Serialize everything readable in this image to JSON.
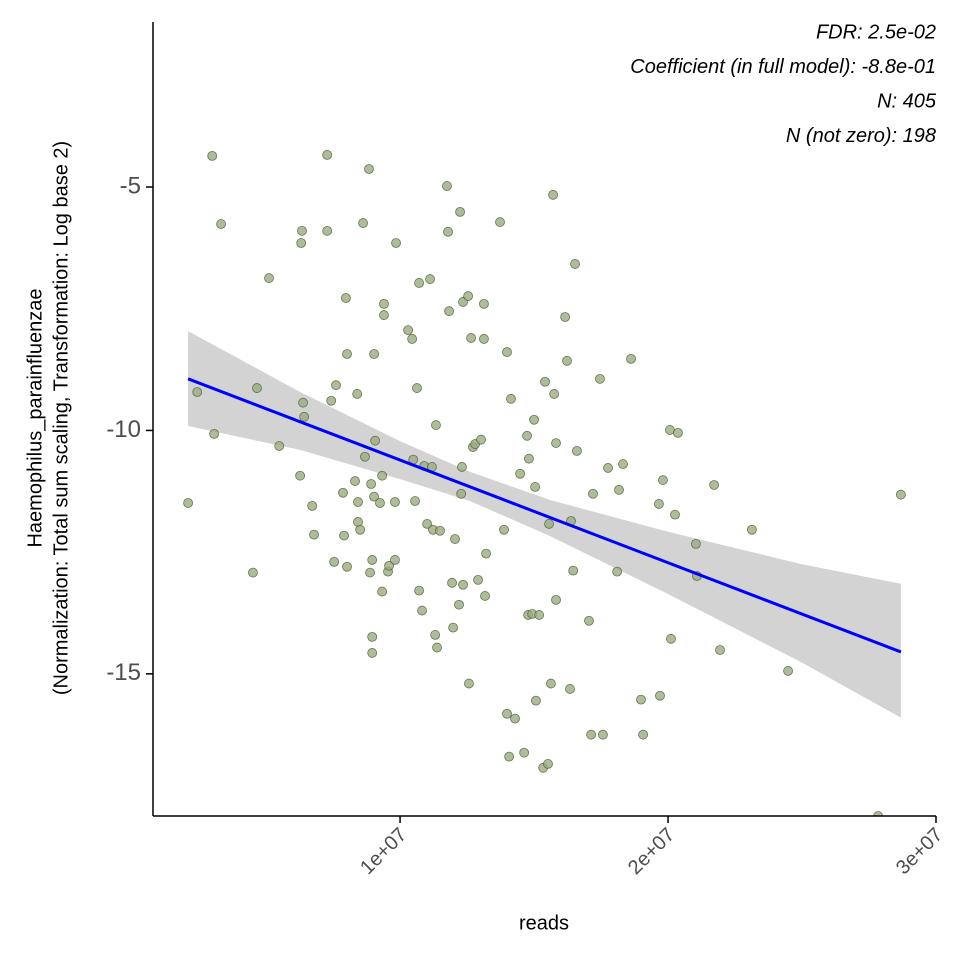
{
  "chart_data": {
    "type": "scatter",
    "x_label": "reads",
    "y_label": [
      "Haemophilus_parainfluenzae",
      "(Normalization: Total sum scaling, Transformation: Log base 2)"
    ],
    "annotations": [
      "FDR: 2.5e-02",
      "Coefficient (in full model): -8.8e-01",
      "N: 405",
      "N (not zero): 198"
    ],
    "xlim": [
      780000,
      30000000
    ],
    "ylim": [
      -17.92,
      -1.61
    ],
    "xticks": [
      {
        "value": 10000000,
        "label": "1e+07"
      },
      {
        "value": 20000000,
        "label": "2e+07"
      },
      {
        "value": 30000000,
        "label": "3e+07"
      }
    ],
    "yticks": [
      -5,
      -10,
      -15
    ],
    "grid": false,
    "point_color": "#9aab7e",
    "point_edge_color": "#4b5a3a",
    "fit_color": "#0000ff",
    "band_color": "#d3d3d3",
    "x": [
      2090000.0,
      2430000.0,
      2990000.0,
      3060000.0,
      3320000.0,
      4510000.0,
      4660000.0,
      5110000.0,
      5490000.0,
      6270000.0,
      6310000.0,
      6340000.0,
      6380000.0,
      6420000.0,
      6720000.0,
      6790000.0,
      7280000.0,
      7280000.0,
      7430000.0,
      7540000.0,
      7610000.0,
      7870000.0,
      7910000.0,
      7980000.0,
      8020000.0,
      8020000.0,
      8320000.0,
      8400000.0,
      8430000.0,
      8430000.0,
      8510000.0,
      8620000.0,
      8690000.0,
      8840000.0,
      8880000.0,
      8920000.0,
      8960000.0,
      8960000.0,
      8960000.0,
      9030000.0,
      9030000.0,
      9070000.0,
      9250000.0,
      9330000.0,
      9330000.0,
      9400000.0,
      9400000.0,
      9550000.0,
      9590000.0,
      9810000.0,
      9810000.0,
      9850000.0,
      10300000.0,
      10450000.0,
      10490000.0,
      10560000.0,
      10630000.0,
      10710000.0,
      10710000.0,
      10820000.0,
      10900000.0,
      11010000.0,
      11120000.0,
      11190000.0,
      11230000.0,
      11310000.0,
      11340000.0,
      11380000.0,
      11490000.0,
      11750000.0,
      11790000.0,
      11830000.0,
      11940000.0,
      11980000.0,
      12050000.0,
      12200000.0,
      12240000.0,
      12280000.0,
      12310000.0,
      12350000.0,
      12350000.0,
      12540000.0,
      12570000.0,
      12650000.0,
      12720000.0,
      12800000.0,
      12910000.0,
      13020000.0,
      13130000.0,
      13130000.0,
      13170000.0,
      13210000.0,
      13730000.0,
      13880000.0,
      13990000.0,
      13990000.0,
      14070000.0,
      14140000.0,
      14290000.0,
      14480000.0,
      14630000.0,
      14740000.0,
      14780000.0,
      14810000.0,
      14930000.0,
      15000000.0,
      15040000.0,
      15070000.0,
      15190000.0,
      15340000.0,
      15410000.0,
      15520000.0,
      15560000.0,
      15630000.0,
      15710000.0,
      15750000.0,
      15820000.0,
      15820000.0,
      16160000.0,
      16230000.0,
      16340000.0,
      16380000.0,
      16460000.0,
      16530000.0,
      16600000.0,
      17050000.0,
      17130000.0,
      17200000.0,
      17460000.0,
      17570000.0,
      17760000.0,
      18100000.0,
      18170000.0,
      18320000.0,
      18620000.0,
      18990000.0,
      19070000.0,
      19660000.0,
      19700000.0,
      19810000.0,
      20070000.0,
      20110000.0,
      20260000.0,
      20370000.0,
      21040000.0,
      21080000.0,
      21720000.0,
      21940000.0,
      23130000.0,
      24480000.0,
      27840000.0,
      28690000.0
    ],
    "y": [
      -11.49,
      -9.21,
      -4.36,
      -10.07,
      -5.76,
      -12.92,
      -9.13,
      -6.87,
      -10.32,
      -10.93,
      -6.15,
      -5.9,
      -9.43,
      -9.72,
      -11.55,
      -12.14,
      -4.34,
      -5.9,
      -9.39,
      -12.7,
      -9.07,
      -11.28,
      -12.16,
      -7.28,
      -8.43,
      -12.8,
      -11.04,
      -9.25,
      -11.47,
      -11.88,
      -12.04,
      -5.74,
      -10.54,
      -4.63,
      -12.92,
      -11.1,
      -12.66,
      -14.24,
      -14.57,
      -8.43,
      -11.36,
      -10.21,
      -11.49,
      -10.93,
      -13.31,
      -7.63,
      -7.4,
      -12.9,
      -12.78,
      -12.66,
      -11.47,
      -6.15,
      -7.94,
      -8.12,
      -10.6,
      -11.45,
      -9.13,
      -6.97,
      -13.29,
      -13.7,
      -10.73,
      -11.92,
      -6.89,
      -10.75,
      -12.04,
      -14.2,
      -9.89,
      -14.46,
      -12.06,
      -4.98,
      -5.92,
      -7.55,
      -13.13,
      -14.05,
      -12.23,
      -13.58,
      -5.51,
      -11.3,
      -10.75,
      -7.36,
      -13.17,
      -7.24,
      -15.2,
      -8.1,
      -10.34,
      -10.28,
      -13.07,
      -10.19,
      -7.4,
      -8.12,
      -13.4,
      -12.53,
      -5.72,
      -12.04,
      -8.39,
      -15.82,
      -16.7,
      -9.35,
      -15.92,
      -10.89,
      -16.62,
      -10.11,
      -13.79,
      -10.58,
      -13.77,
      -9.78,
      -11.16,
      -15.55,
      -13.79,
      -16.93,
      -9.0,
      -16.85,
      -11.92,
      -15.2,
      -5.16,
      -9.25,
      -10.26,
      -13.48,
      -7.67,
      -8.57,
      -15.31,
      -11.86,
      -12.88,
      -6.58,
      -10.42,
      -13.91,
      -16.25,
      -11.3,
      -8.94,
      -16.25,
      -10.77,
      -12.9,
      -11.22,
      -10.69,
      -8.53,
      -15.53,
      -16.25,
      -11.51,
      -15.45,
      -11.02,
      -9.99,
      -14.28,
      -11.73,
      -10.05,
      -12.33,
      -12.99,
      -11.12,
      -14.51,
      -12.04,
      -14.94,
      -17.92,
      -11.32
    ],
    "fit": {
      "x": [
        2090000.0,
        28690000.0
      ],
      "y": [
        -8.94,
        -14.55
      ]
    },
    "band": {
      "x": [
        2090000.0,
        6270000.0,
        10000000.0,
        12610000.0,
        15600000.0,
        20000000.0,
        24930000.0,
        28690000.0
      ],
      "lower": [
        -9.91,
        -10.4,
        -11.0,
        -11.45,
        -12.17,
        -13.36,
        -14.75,
        -15.9
      ],
      "upper": [
        -7.96,
        -9.21,
        -10.22,
        -10.85,
        -11.43,
        -12.08,
        -12.74,
        -13.15
      ]
    }
  }
}
